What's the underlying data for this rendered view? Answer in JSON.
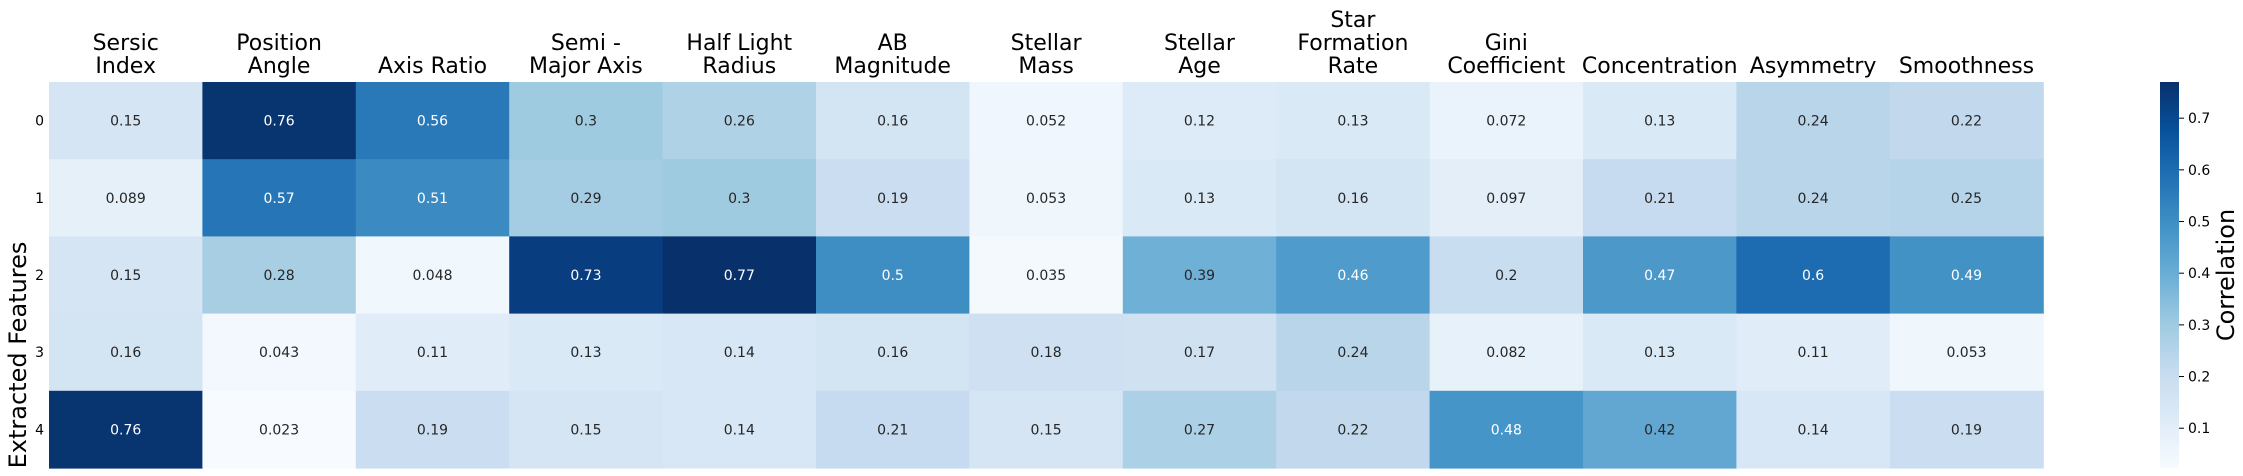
{
  "chart_data": {
    "type": "heatmap",
    "title": "",
    "xlabel": "",
    "ylabel": "Extracted Features",
    "colorbar_label": "Correlation",
    "colormap": "Blues",
    "vmin": 0.023,
    "vmax": 0.77,
    "colorbar_ticks": [
      "0.1",
      "0.2",
      "0.3",
      "0.4",
      "0.5",
      "0.6",
      "0.7"
    ],
    "columns": [
      "Sersic\nIndex",
      "Position\nAngle",
      "Axis Ratio",
      "Semi -\nMajor Axis",
      "Half Light\nRadius",
      "AB\nMagnitude",
      "Stellar\nMass",
      "Stellar\nAge",
      "Star\nFormation\nRate",
      "Gini\nCoefficient",
      "Concentration",
      "Asymmetry",
      "Smoothness"
    ],
    "rows": [
      "0",
      "1",
      "2",
      "3",
      "4"
    ],
    "values": [
      [
        0.15,
        0.76,
        0.56,
        0.3,
        0.26,
        0.16,
        0.052,
        0.12,
        0.13,
        0.072,
        0.13,
        0.24,
        0.22
      ],
      [
        0.089,
        0.57,
        0.51,
        0.29,
        0.3,
        0.19,
        0.053,
        0.13,
        0.16,
        0.097,
        0.21,
        0.24,
        0.25
      ],
      [
        0.15,
        0.28,
        0.048,
        0.73,
        0.77,
        0.5,
        0.035,
        0.39,
        0.46,
        0.2,
        0.47,
        0.6,
        0.49
      ],
      [
        0.16,
        0.043,
        0.11,
        0.13,
        0.14,
        0.16,
        0.18,
        0.17,
        0.24,
        0.082,
        0.13,
        0.11,
        0.053
      ],
      [
        0.76,
        0.023,
        0.19,
        0.15,
        0.14,
        0.21,
        0.15,
        0.27,
        0.22,
        0.48,
        0.42,
        0.14,
        0.19
      ]
    ]
  }
}
